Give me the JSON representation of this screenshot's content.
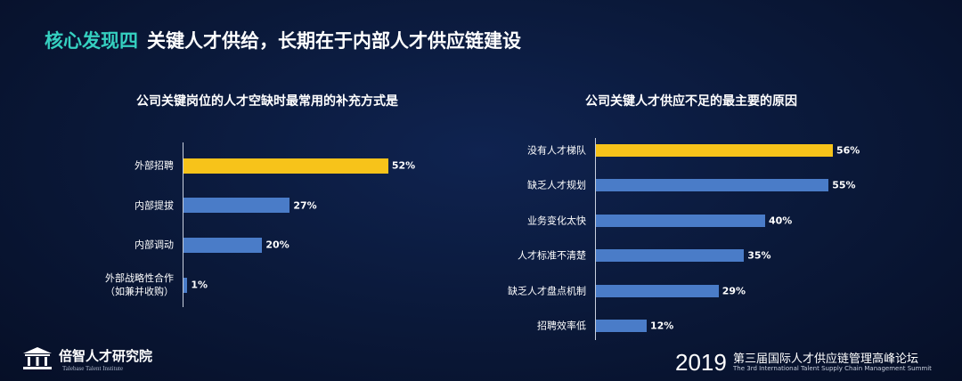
{
  "header": {
    "highlight": "核心发现四",
    "title": "关键人才供给，长期在于内部人才供应链建设"
  },
  "chart_data": [
    {
      "type": "barh",
      "title": "公司关键岗位的人才空缺时最常用的补充方式是",
      "categories": [
        "外部招聘",
        "内部提拔",
        "内部调动",
        "外部战略性合作\n（如兼并收购）"
      ],
      "values": [
        52,
        27,
        20,
        1
      ],
      "value_labels": [
        "52%",
        "27%",
        "20%",
        "1%"
      ],
      "colors": [
        "#f7c31a",
        "#4a7cc8",
        "#4a7cc8",
        "#4a7cc8"
      ]
    },
    {
      "type": "barh",
      "title": "公司关键人才供应不足的最主要的原因",
      "categories": [
        "没有人才梯队",
        "缺乏人才规划",
        "业务变化太快",
        "人才标准不清楚",
        "缺乏人才盘点机制",
        "招聘效率低"
      ],
      "values": [
        56,
        55,
        40,
        35,
        29,
        12
      ],
      "value_labels": [
        "56%",
        "55%",
        "40%",
        "35%",
        "29%",
        "12%"
      ],
      "colors": [
        "#f7c31a",
        "#4a7cc8",
        "#4a7cc8",
        "#4a7cc8",
        "#4a7cc8",
        "#4a7cc8"
      ]
    }
  ],
  "footer": {
    "logo": "倍智人才研究院",
    "logo_sub": "Talebase Talent Institute",
    "year": "2019",
    "event": "第三届国际人才供应链管理高峰论坛",
    "event_en": "The 3rd International Talent Supply Chain Management Summit"
  }
}
